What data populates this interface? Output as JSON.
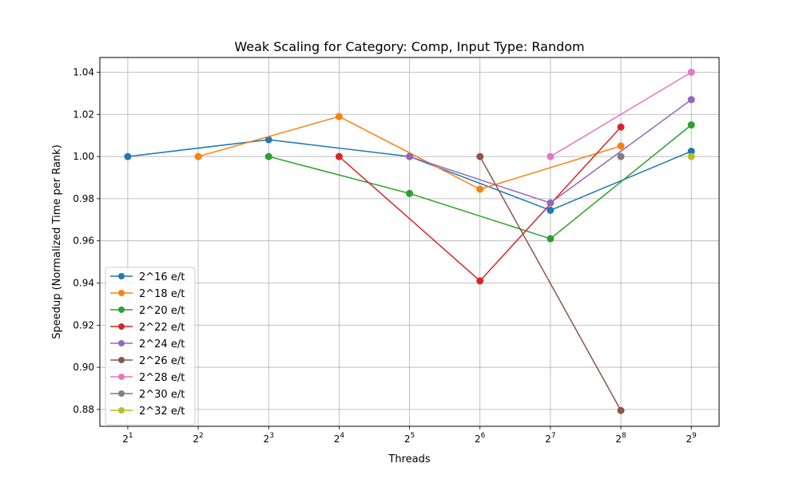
{
  "chart_data": {
    "type": "line",
    "title": "Weak Scaling for Category: Comp, Input Type: Random",
    "xlabel": "Threads",
    "ylabel": "Speedup (Normalized Time per Rank)",
    "x_scale": "log2",
    "x_ticks": [
      {
        "value": 2,
        "base": "2",
        "exp": "1"
      },
      {
        "value": 4,
        "base": "2",
        "exp": "2"
      },
      {
        "value": 8,
        "base": "2",
        "exp": "3"
      },
      {
        "value": 16,
        "base": "2",
        "exp": "4"
      },
      {
        "value": 32,
        "base": "2",
        "exp": "5"
      },
      {
        "value": 64,
        "base": "2",
        "exp": "6"
      },
      {
        "value": 128,
        "base": "2",
        "exp": "7"
      },
      {
        "value": 256,
        "base": "2",
        "exp": "8"
      },
      {
        "value": 512,
        "base": "2",
        "exp": "9"
      }
    ],
    "y_ticks": [
      "0.88",
      "0.90",
      "0.92",
      "0.94",
      "0.96",
      "0.98",
      "1.00",
      "1.02",
      "1.04"
    ],
    "xlim": [
      1.52,
      673
    ],
    "ylim": [
      0.872,
      1.047
    ],
    "grid": true,
    "legend_position": "lower-left",
    "series": [
      {
        "name": "2^16 e/t",
        "color": "#1f77b4",
        "x": [
          2,
          8,
          32,
          128,
          512
        ],
        "y": [
          1.0,
          1.008,
          1.0,
          0.9745,
          1.0025
        ]
      },
      {
        "name": "2^18 e/t",
        "color": "#ff7f0e",
        "x": [
          4,
          16,
          64,
          256
        ],
        "y": [
          1.0,
          1.019,
          0.9845,
          1.005
        ]
      },
      {
        "name": "2^20 e/t",
        "color": "#2ca02c",
        "x": [
          8,
          32,
          128,
          512
        ],
        "y": [
          1.0,
          0.9825,
          0.961,
          1.015
        ]
      },
      {
        "name": "2^22 e/t",
        "color": "#d62728",
        "x": [
          16,
          64,
          256
        ],
        "y": [
          1.0,
          0.941,
          1.014
        ]
      },
      {
        "name": "2^24 e/t",
        "color": "#9467bd",
        "x": [
          32,
          128,
          512
        ],
        "y": [
          1.0,
          0.978,
          1.027
        ]
      },
      {
        "name": "2^26 e/t",
        "color": "#8c564b",
        "x": [
          64,
          256
        ],
        "y": [
          1.0,
          0.8795
        ]
      },
      {
        "name": "2^28 e/t",
        "color": "#e377c2",
        "x": [
          128,
          512
        ],
        "y": [
          1.0,
          1.04
        ]
      },
      {
        "name": "2^30 e/t",
        "color": "#7f7f7f",
        "x": [
          256
        ],
        "y": [
          1.0
        ]
      },
      {
        "name": "2^32 e/t",
        "color": "#bcbd22",
        "x": [
          512
        ],
        "y": [
          1.0
        ]
      }
    ]
  }
}
